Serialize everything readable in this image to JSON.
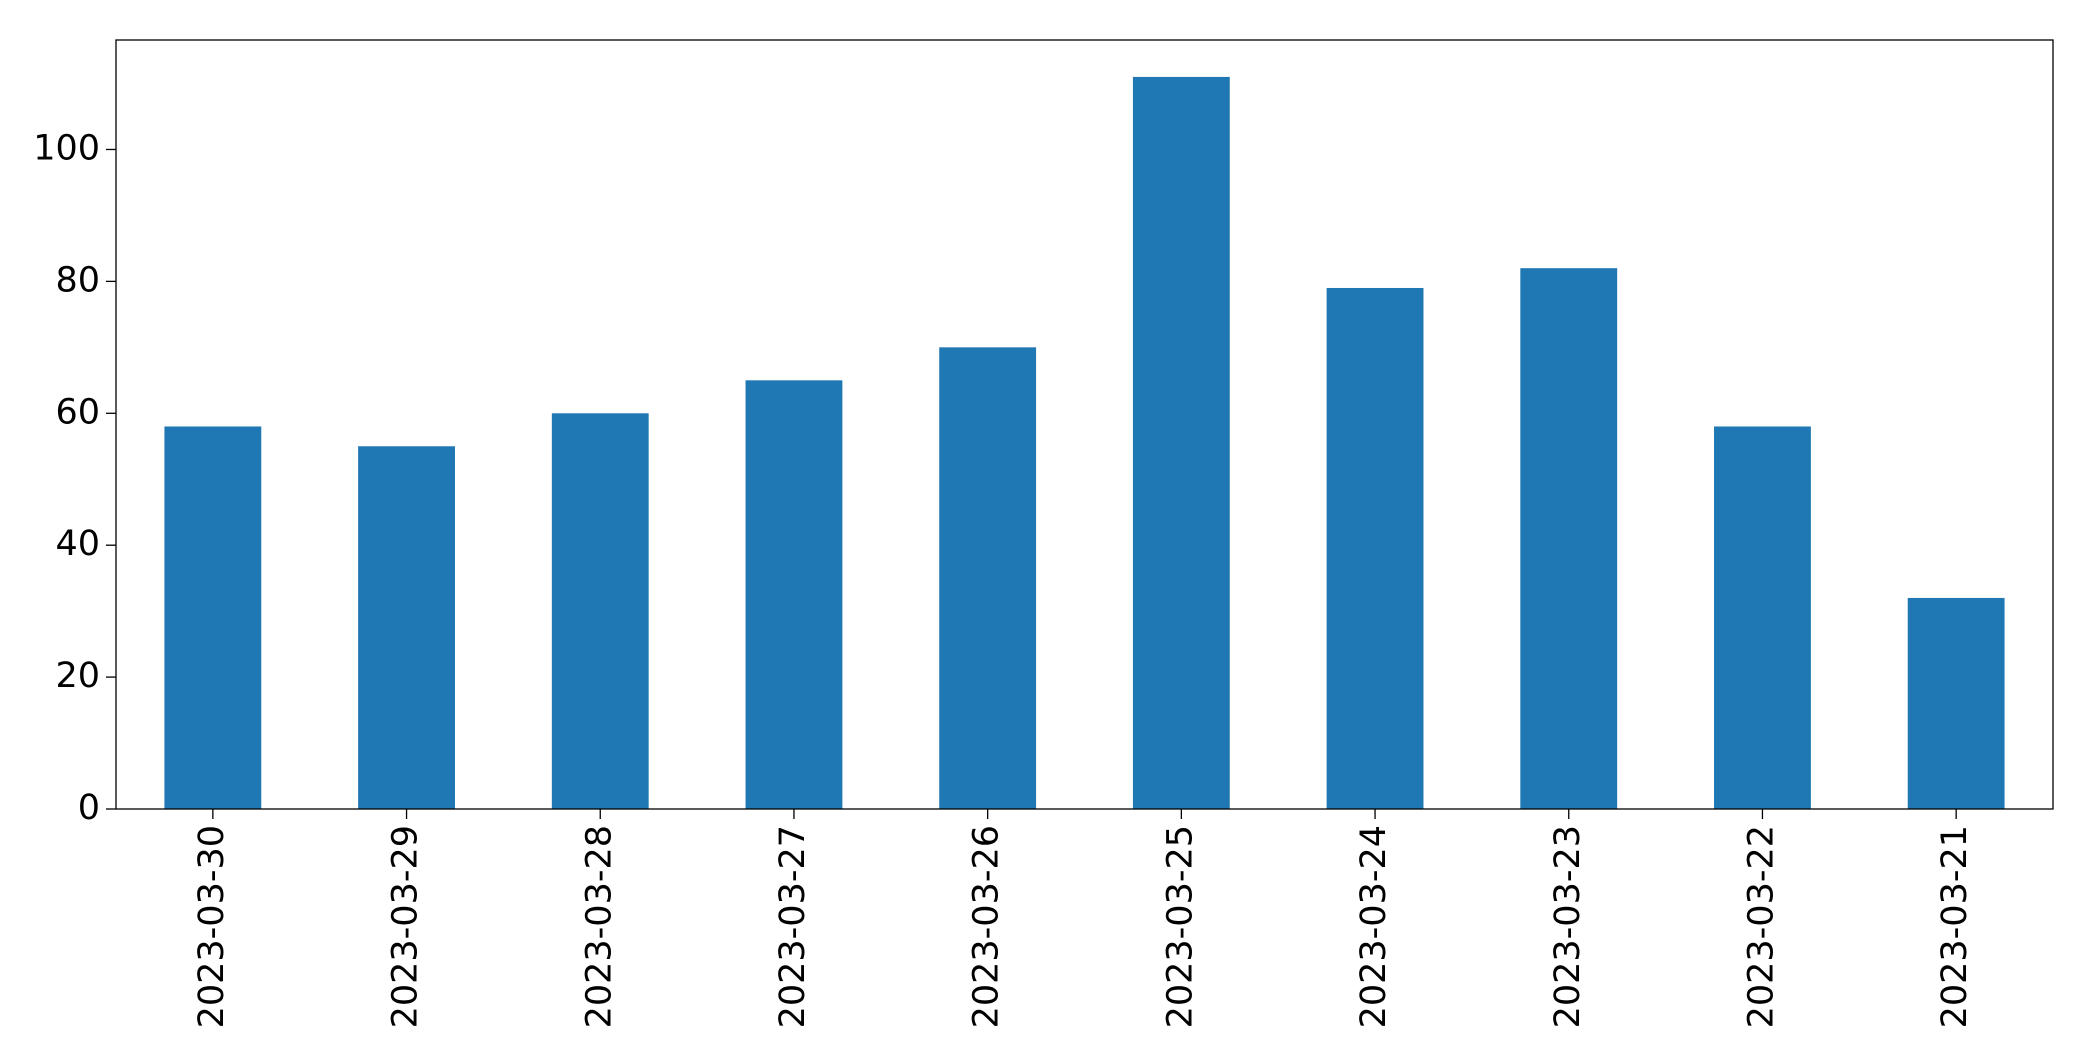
{
  "chart_data": {
    "type": "bar",
    "categories": [
      "2023-03-30",
      "2023-03-29",
      "2023-03-28",
      "2023-03-27",
      "2023-03-26",
      "2023-03-25",
      "2023-03-24",
      "2023-03-23",
      "2023-03-22",
      "2023-03-21"
    ],
    "values": [
      58,
      55,
      60,
      65,
      70,
      111,
      79,
      82,
      58,
      32
    ],
    "color": "#1f77b4",
    "ylim": [
      0,
      116.6
    ],
    "yticks": [
      0,
      20,
      40,
      60,
      80,
      100
    ],
    "grid": false
  }
}
